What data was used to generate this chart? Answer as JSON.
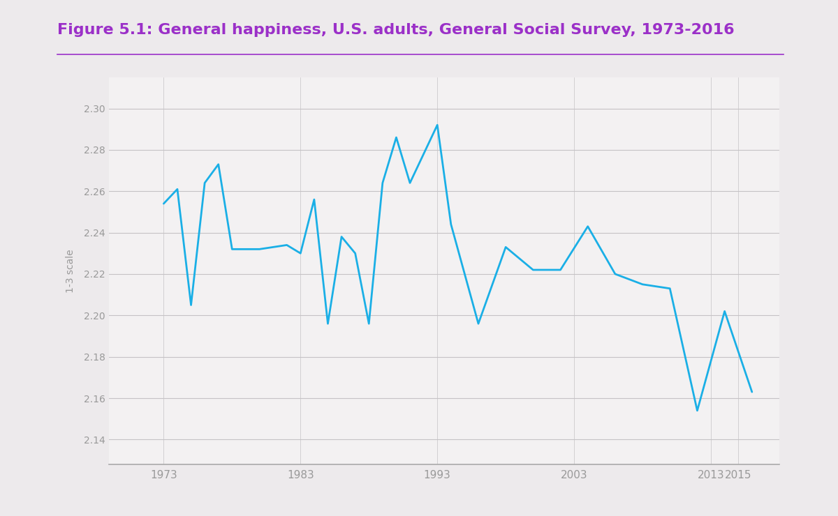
{
  "title": "Figure 5.1: General happiness, U.S. adults, General Social Survey, 1973-2016",
  "title_color": "#9B30C8",
  "title_fontsize": 16,
  "ylabel": "1-3 scale",
  "ylabel_fontsize": 10,
  "background_color": "#EDEAEC",
  "plot_background_color": "#F3F1F2",
  "line_color": "#1AAFE6",
  "line_width": 2.0,
  "grid_color": "#C5C2C5",
  "spine_color": "#AAAAAA",
  "tick_color": "#999999",
  "ylim": [
    2.128,
    2.315
  ],
  "yticks": [
    2.14,
    2.16,
    2.18,
    2.2,
    2.22,
    2.24,
    2.26,
    2.28,
    2.3
  ],
  "xticks": [
    1973,
    1983,
    1993,
    2003,
    2013,
    2015
  ],
  "xlim": [
    1969,
    2018
  ],
  "years": [
    1973,
    1974,
    1975,
    1976,
    1977,
    1978,
    1980,
    1982,
    1983,
    1984,
    1985,
    1986,
    1987,
    1988,
    1989,
    1990,
    1991,
    1993,
    1994,
    1996,
    1998,
    2000,
    2002,
    2004,
    2006,
    2008,
    2010,
    2012,
    2014,
    2016
  ],
  "values": [
    2.254,
    2.261,
    2.205,
    2.264,
    2.273,
    2.232,
    2.232,
    2.234,
    2.23,
    2.256,
    2.196,
    2.238,
    2.23,
    2.196,
    2.264,
    2.286,
    2.264,
    2.292,
    2.244,
    2.196,
    2.233,
    2.222,
    2.222,
    2.243,
    2.22,
    2.215,
    2.213,
    2.154,
    2.202,
    2.163
  ]
}
